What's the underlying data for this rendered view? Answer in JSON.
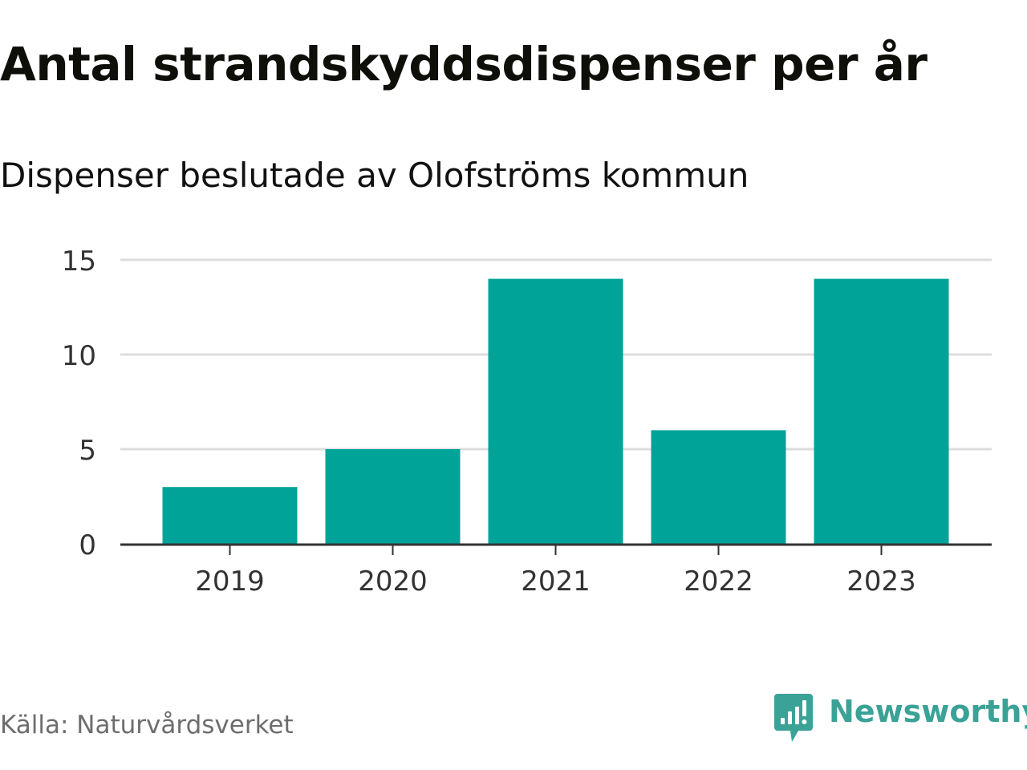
{
  "header": {
    "title": "Antal strandskyddsdispenser per år",
    "subtitle": "Dispenser beslutade av Olofströms kommun"
  },
  "footer": {
    "source": "Källa: Naturvårdsverket",
    "brand": "Newsworthy",
    "brand_icon": "newsworthy-logo-icon"
  },
  "colors": {
    "bar": "#00a398",
    "brand": "#3aa296",
    "grid": "#dcdcdc",
    "axis": "#333333",
    "tick_text": "#333333"
  },
  "chart_data": {
    "type": "bar",
    "categories": [
      "2019",
      "2020",
      "2021",
      "2022",
      "2023"
    ],
    "values": [
      3,
      5,
      14,
      6,
      14
    ],
    "title": "Antal strandskyddsdispenser per år",
    "subtitle": "Dispenser beslutade av Olofströms kommun",
    "xlabel": "",
    "ylabel": "",
    "ylim": [
      0,
      15
    ],
    "yticks": [
      "0",
      "5",
      "10",
      "15"
    ],
    "ytick_values": [
      0,
      5,
      10,
      15
    ],
    "grid": true,
    "legend": "none"
  }
}
